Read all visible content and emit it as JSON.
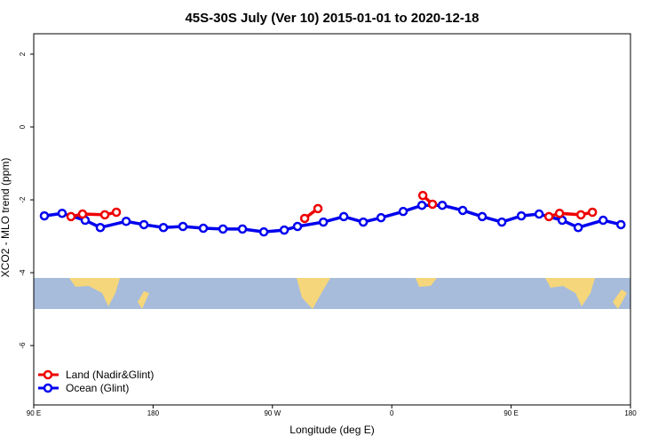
{
  "chart_data": {
    "type": "line",
    "title": "45S-30S July (Ver 10)   2015-01-01 to 2020-12-18",
    "x_label": "Longitude (deg E)",
    "y_label": "XCO2 - MLO trend (ppm)",
    "xlim": [
      90,
      540
    ],
    "ylim": [
      -7.63,
      2.56
    ],
    "xticks": [
      {
        "value": 90,
        "label": "90 E"
      },
      180,
      {
        "value": 270,
        "label": "90 W"
      },
      {
        "value": 360,
        "label": "0"
      },
      {
        "value": 450,
        "label": "90 E"
      },
      {
        "value": 540,
        "label": "180"
      }
    ],
    "yticks": [
      -6,
      -4,
      -2,
      0,
      2
    ],
    "legend": "bottom-left",
    "series": [
      {
        "name": "Ocean (Glint)",
        "color": "#0000ee",
        "x": [
          98.0,
          111.4,
          128.8,
          140.2,
          159.7,
          173.1,
          187.8,
          202.5,
          217.9,
          232.7,
          247.4,
          263.5,
          278.9,
          288.9,
          308.4,
          323.8,
          338.5,
          351.9,
          368.6,
          382.7,
          398.1,
          413.5,
          428.2,
          443.0,
          457.7,
          471.1,
          488.5,
          500.6,
          519.4,
          532.8
        ],
        "values": [
          -2.44,
          -2.37,
          -2.56,
          -2.76,
          -2.59,
          -2.68,
          -2.76,
          -2.73,
          -2.78,
          -2.8,
          -2.8,
          -2.88,
          -2.83,
          -2.73,
          -2.61,
          -2.46,
          -2.61,
          -2.49,
          -2.32,
          -2.15,
          -2.15,
          -2.29,
          -2.46,
          -2.61,
          -2.44,
          -2.39,
          -2.56,
          -2.76,
          -2.56,
          -2.68
        ]
      },
      {
        "name": "Land (Nadir&Glint)",
        "color": "#ee0000",
        "x": [
          118.1,
          126.8,
          143.6,
          152.3,
          null,
          294.3,
          304.3,
          null,
          383.4,
          390.7,
          null,
          478.5,
          486.5,
          502.6,
          511.3
        ],
        "values": [
          -2.46,
          -2.39,
          -2.41,
          -2.34,
          null,
          -2.51,
          -2.24,
          null,
          -1.88,
          -2.12,
          null,
          -2.46,
          -2.37,
          -2.41,
          -2.34
        ]
      }
    ]
  }
}
